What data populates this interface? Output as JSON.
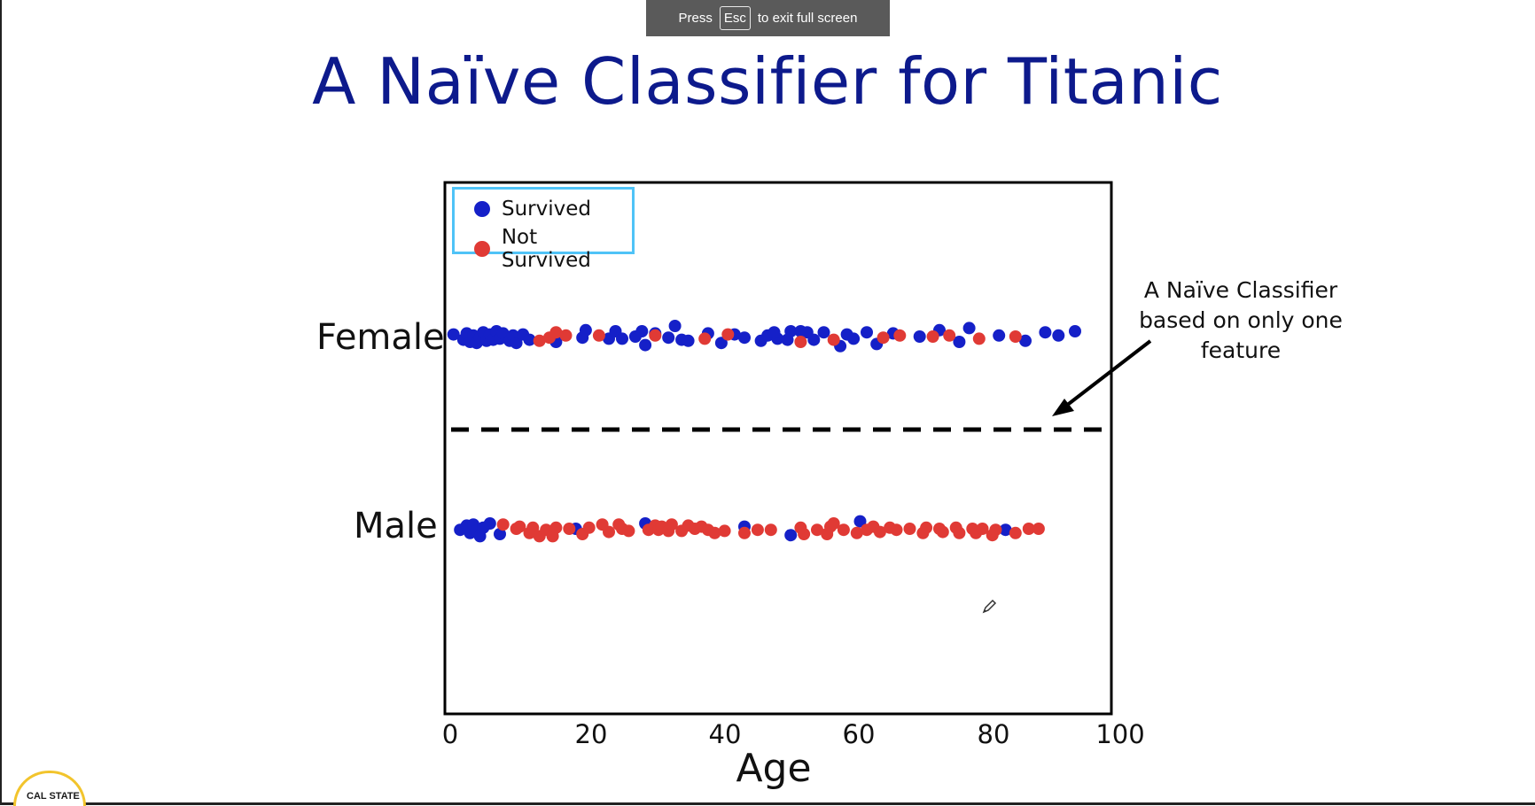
{
  "fullscreen_banner": {
    "press": "Press",
    "key": "Esc",
    "suffix": "to exit full screen"
  },
  "slide": {
    "title": "A Naïve Classifier for Titanic",
    "annotation": "A Naïve Classifier based on only one feature",
    "logo_text": "CAL STATE"
  },
  "colors": {
    "survived": "#1520c8",
    "not_survived": "#e03a35",
    "title": "#0d1a8c",
    "legend_border": "#4fc3f7"
  },
  "icons": {
    "cursor": "pencil-cursor-icon"
  },
  "chart_data": {
    "type": "scatter",
    "title": "",
    "xlabel": "Age",
    "ylabel": "",
    "xlim": [
      0,
      100
    ],
    "xticks": [
      "0",
      "20",
      "40",
      "60",
      "80",
      "100"
    ],
    "categories": [
      "Female",
      "Male"
    ],
    "legend": {
      "position": "top-left",
      "entries": [
        "Survived",
        "Not Survived"
      ]
    },
    "decision_boundary": "dashed horizontal line between Female and Male",
    "series": [
      {
        "name": "Survived",
        "color": "#1520c8",
        "points": [
          {
            "x": 0.5,
            "cat": "Female",
            "j": -0.2
          },
          {
            "x": 2,
            "cat": "Female",
            "j": 0.3
          },
          {
            "x": 2.5,
            "cat": "Female",
            "j": -0.3
          },
          {
            "x": 3,
            "cat": "Female",
            "j": 0.5
          },
          {
            "x": 3.5,
            "cat": "Female",
            "j": -0.1
          },
          {
            "x": 4,
            "cat": "Female",
            "j": 0.6
          },
          {
            "x": 4.5,
            "cat": "Female",
            "j": 0.1
          },
          {
            "x": 5,
            "cat": "Female",
            "j": -0.4
          },
          {
            "x": 5.5,
            "cat": "Female",
            "j": 0.4
          },
          {
            "x": 6,
            "cat": "Female",
            "j": -0.2
          },
          {
            "x": 6.5,
            "cat": "Female",
            "j": 0.3
          },
          {
            "x": 7,
            "cat": "Female",
            "j": -0.5
          },
          {
            "x": 7.5,
            "cat": "Female",
            "j": 0.2
          },
          {
            "x": 8,
            "cat": "Female",
            "j": -0.3
          },
          {
            "x": 9,
            "cat": "Female",
            "j": 0.4
          },
          {
            "x": 9.5,
            "cat": "Female",
            "j": -0.1
          },
          {
            "x": 10,
            "cat": "Female",
            "j": 0.6
          },
          {
            "x": 11,
            "cat": "Female",
            "j": -0.2
          },
          {
            "x": 12,
            "cat": "Female",
            "j": 0.3
          },
          {
            "x": 16,
            "cat": "Female",
            "j": 0.5
          },
          {
            "x": 20,
            "cat": "Female",
            "j": 0.1
          },
          {
            "x": 20.5,
            "cat": "Female",
            "j": -0.6
          },
          {
            "x": 24,
            "cat": "Female",
            "j": 0.2
          },
          {
            "x": 25,
            "cat": "Female",
            "j": -0.5
          },
          {
            "x": 26,
            "cat": "Female",
            "j": 0.2
          },
          {
            "x": 28,
            "cat": "Female",
            "j": 0
          },
          {
            "x": 29,
            "cat": "Female",
            "j": -0.5
          },
          {
            "x": 29.5,
            "cat": "Female",
            "j": 0.8
          },
          {
            "x": 31,
            "cat": "Female",
            "j": -0.3
          },
          {
            "x": 33,
            "cat": "Female",
            "j": 0.1
          },
          {
            "x": 34,
            "cat": "Female",
            "j": -1.0
          },
          {
            "x": 35,
            "cat": "Female",
            "j": 0.3
          },
          {
            "x": 36,
            "cat": "Female",
            "j": 0.4
          },
          {
            "x": 39,
            "cat": "Female",
            "j": -0.3
          },
          {
            "x": 41,
            "cat": "Female",
            "j": 0.6
          },
          {
            "x": 43,
            "cat": "Female",
            "j": -0.2
          },
          {
            "x": 44.5,
            "cat": "Female",
            "j": 0.1
          },
          {
            "x": 47,
            "cat": "Female",
            "j": 0.4
          },
          {
            "x": 48,
            "cat": "Female",
            "j": -0.1
          },
          {
            "x": 49.5,
            "cat": "Female",
            "j": 0.2
          },
          {
            "x": 49,
            "cat": "Female",
            "j": -0.4
          },
          {
            "x": 51,
            "cat": "Female",
            "j": 0.3
          },
          {
            "x": 51.5,
            "cat": "Female",
            "j": -0.5
          },
          {
            "x": 53,
            "cat": "Female",
            "j": -0.5
          },
          {
            "x": 54,
            "cat": "Female",
            "j": -0.4
          },
          {
            "x": 55,
            "cat": "Female",
            "j": 0.3
          },
          {
            "x": 56.5,
            "cat": "Female",
            "j": -0.4
          },
          {
            "x": 59,
            "cat": "Female",
            "j": 0.9
          },
          {
            "x": 60,
            "cat": "Female",
            "j": -0.2
          },
          {
            "x": 61,
            "cat": "Female",
            "j": 0.2
          },
          {
            "x": 63,
            "cat": "Female",
            "j": -0.4
          },
          {
            "x": 64.5,
            "cat": "Female",
            "j": 0.7
          },
          {
            "x": 67,
            "cat": "Female",
            "j": -0.3
          },
          {
            "x": 71,
            "cat": "Female",
            "j": 0
          },
          {
            "x": 74,
            "cat": "Female",
            "j": -0.6
          },
          {
            "x": 77,
            "cat": "Female",
            "j": 0.5
          },
          {
            "x": 78.5,
            "cat": "Female",
            "j": -0.8
          },
          {
            "x": 83,
            "cat": "Female",
            "j": -0.1
          },
          {
            "x": 87,
            "cat": "Female",
            "j": 0.4
          },
          {
            "x": 90,
            "cat": "Female",
            "j": -0.4
          },
          {
            "x": 92,
            "cat": "Female",
            "j": -0.1
          },
          {
            "x": 94.5,
            "cat": "Female",
            "j": -0.5
          },
          {
            "x": 1.5,
            "cat": "Male",
            "j": 0.1
          },
          {
            "x": 2.5,
            "cat": "Male",
            "j": -0.3
          },
          {
            "x": 3,
            "cat": "Male",
            "j": 0.4
          },
          {
            "x": 3.5,
            "cat": "Male",
            "j": -0.4
          },
          {
            "x": 4,
            "cat": "Male",
            "j": 0.2
          },
          {
            "x": 4.5,
            "cat": "Male",
            "j": 0.7
          },
          {
            "x": 5,
            "cat": "Male",
            "j": -0.1
          },
          {
            "x": 6,
            "cat": "Male",
            "j": -0.5
          },
          {
            "x": 7.5,
            "cat": "Male",
            "j": 0.5
          },
          {
            "x": 19,
            "cat": "Male",
            "j": 0
          },
          {
            "x": 29.5,
            "cat": "Male",
            "j": -0.5
          },
          {
            "x": 44.5,
            "cat": "Male",
            "j": -0.2
          },
          {
            "x": 51.5,
            "cat": "Male",
            "j": 0.6
          },
          {
            "x": 62,
            "cat": "Male",
            "j": -0.7
          },
          {
            "x": 84,
            "cat": "Male",
            "j": 0.1
          }
        ]
      },
      {
        "name": "Not Survived",
        "color": "#e03a35",
        "points": [
          {
            "x": 13.5,
            "cat": "Female",
            "j": 0.4
          },
          {
            "x": 15,
            "cat": "Female",
            "j": 0.1
          },
          {
            "x": 16,
            "cat": "Female",
            "j": -0.4
          },
          {
            "x": 17.5,
            "cat": "Female",
            "j": -0.1
          },
          {
            "x": 22.5,
            "cat": "Female",
            "j": -0.1
          },
          {
            "x": 31,
            "cat": "Female",
            "j": -0.1
          },
          {
            "x": 38.5,
            "cat": "Female",
            "j": 0.2
          },
          {
            "x": 42,
            "cat": "Female",
            "j": -0.2
          },
          {
            "x": 53,
            "cat": "Female",
            "j": 0.5
          },
          {
            "x": 58,
            "cat": "Female",
            "j": 0.3
          },
          {
            "x": 65.5,
            "cat": "Female",
            "j": 0.1
          },
          {
            "x": 68,
            "cat": "Female",
            "j": -0.1
          },
          {
            "x": 73,
            "cat": "Female",
            "j": 0
          },
          {
            "x": 75.5,
            "cat": "Female",
            "j": -0.1
          },
          {
            "x": 80,
            "cat": "Female",
            "j": 0.2
          },
          {
            "x": 85.5,
            "cat": "Female",
            "j": 0
          },
          {
            "x": 8,
            "cat": "Male",
            "j": -0.4
          },
          {
            "x": 10,
            "cat": "Male",
            "j": 0
          },
          {
            "x": 10.5,
            "cat": "Male",
            "j": -0.2
          },
          {
            "x": 12,
            "cat": "Male",
            "j": 0.4
          },
          {
            "x": 12.5,
            "cat": "Male",
            "j": -0.1
          },
          {
            "x": 13.5,
            "cat": "Male",
            "j": 0.7
          },
          {
            "x": 14.5,
            "cat": "Male",
            "j": 0.1
          },
          {
            "x": 15.5,
            "cat": "Male",
            "j": 0.7
          },
          {
            "x": 16,
            "cat": "Male",
            "j": -0.1
          },
          {
            "x": 18,
            "cat": "Male",
            "j": 0
          },
          {
            "x": 20,
            "cat": "Male",
            "j": 0.5
          },
          {
            "x": 21,
            "cat": "Male",
            "j": -0.1
          },
          {
            "x": 23,
            "cat": "Male",
            "j": -0.4
          },
          {
            "x": 24,
            "cat": "Male",
            "j": 0.3
          },
          {
            "x": 25.5,
            "cat": "Male",
            "j": -0.4
          },
          {
            "x": 26,
            "cat": "Male",
            "j": 0
          },
          {
            "x": 27,
            "cat": "Male",
            "j": 0.2
          },
          {
            "x": 30,
            "cat": "Male",
            "j": 0.1
          },
          {
            "x": 31,
            "cat": "Male",
            "j": -0.3
          },
          {
            "x": 31.5,
            "cat": "Male",
            "j": 0.1
          },
          {
            "x": 32,
            "cat": "Male",
            "j": -0.2
          },
          {
            "x": 33,
            "cat": "Male",
            "j": 0.2
          },
          {
            "x": 33.5,
            "cat": "Male",
            "j": -0.4
          },
          {
            "x": 35,
            "cat": "Male",
            "j": 0.2
          },
          {
            "x": 36,
            "cat": "Male",
            "j": -0.3
          },
          {
            "x": 37,
            "cat": "Male",
            "j": 0
          },
          {
            "x": 38,
            "cat": "Male",
            "j": -0.2
          },
          {
            "x": 39,
            "cat": "Male",
            "j": 0.1
          },
          {
            "x": 40,
            "cat": "Male",
            "j": 0.4
          },
          {
            "x": 41.5,
            "cat": "Male",
            "j": 0.2
          },
          {
            "x": 44.5,
            "cat": "Male",
            "j": 0.4
          },
          {
            "x": 46.5,
            "cat": "Male",
            "j": 0.1
          },
          {
            "x": 48.5,
            "cat": "Male",
            "j": 0.1
          },
          {
            "x": 53.5,
            "cat": "Male",
            "j": 0.5
          },
          {
            "x": 53,
            "cat": "Male",
            "j": -0.1
          },
          {
            "x": 55.5,
            "cat": "Male",
            "j": 0.1
          },
          {
            "x": 57,
            "cat": "Male",
            "j": 0.5
          },
          {
            "x": 57.5,
            "cat": "Male",
            "j": -0.2
          },
          {
            "x": 58,
            "cat": "Male",
            "j": -0.5
          },
          {
            "x": 59.5,
            "cat": "Male",
            "j": 0.1
          },
          {
            "x": 61.5,
            "cat": "Male",
            "j": 0.4
          },
          {
            "x": 63,
            "cat": "Male",
            "j": 0.1
          },
          {
            "x": 64,
            "cat": "Male",
            "j": -0.2
          },
          {
            "x": 65,
            "cat": "Male",
            "j": 0.3
          },
          {
            "x": 66.5,
            "cat": "Male",
            "j": -0.1
          },
          {
            "x": 67.5,
            "cat": "Male",
            "j": 0.1
          },
          {
            "x": 69.5,
            "cat": "Male",
            "j": 0
          },
          {
            "x": 71.5,
            "cat": "Male",
            "j": 0.4
          },
          {
            "x": 72,
            "cat": "Male",
            "j": -0.1
          },
          {
            "x": 74,
            "cat": "Male",
            "j": 0
          },
          {
            "x": 74.5,
            "cat": "Male",
            "j": 0.3
          },
          {
            "x": 76.5,
            "cat": "Male",
            "j": -0.1
          },
          {
            "x": 77,
            "cat": "Male",
            "j": 0.4
          },
          {
            "x": 79,
            "cat": "Male",
            "j": 0
          },
          {
            "x": 79.5,
            "cat": "Male",
            "j": 0.4
          },
          {
            "x": 80.5,
            "cat": "Male",
            "j": 0
          },
          {
            "x": 82,
            "cat": "Male",
            "j": 0.6
          },
          {
            "x": 82.5,
            "cat": "Male",
            "j": 0.1
          },
          {
            "x": 85.5,
            "cat": "Male",
            "j": 0.4
          },
          {
            "x": 87.5,
            "cat": "Male",
            "j": 0
          },
          {
            "x": 89,
            "cat": "Male",
            "j": 0
          }
        ]
      }
    ]
  }
}
